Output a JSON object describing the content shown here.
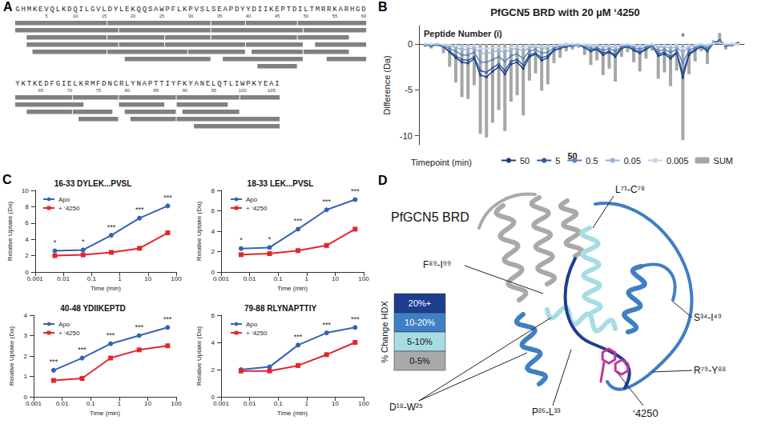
{
  "panel_letters": [
    "A",
    "B",
    "C",
    "D"
  ],
  "coverage": {
    "rows": [
      {
        "first_residue": 0,
        "sequence": "GHMKEVQLKDQILGVLDYLEKQQSAWPFLKPVSLSEAPDYYDIIKEPTDILTMRRKARHGD",
        "ticks": [
          5,
          10,
          15,
          20,
          25,
          30,
          35,
          40,
          45,
          50,
          55,
          60
        ],
        "peptides": [
          [
            0,
            15
          ],
          [
            0,
            17
          ],
          [
            2,
            15
          ],
          [
            2,
            17
          ],
          [
            3,
            15
          ],
          [
            16,
            33
          ],
          [
            18,
            33
          ],
          [
            16,
            25
          ],
          [
            18,
            25
          ],
          [
            16,
            29
          ],
          [
            19,
            33
          ],
          [
            26,
            33
          ],
          [
            26,
            39
          ],
          [
            30,
            39
          ],
          [
            34,
            39
          ],
          [
            34,
            49
          ],
          [
            34,
            48
          ],
          [
            36,
            49
          ],
          [
            40,
            48
          ],
          [
            40,
            49
          ],
          [
            41,
            49
          ],
          [
            42,
            48
          ],
          [
            49,
            60
          ],
          [
            50,
            60
          ],
          [
            49,
            57
          ],
          [
            52,
            60
          ],
          [
            50,
            57
          ],
          [
            54,
            60
          ]
        ]
      },
      {
        "first_residue": 61,
        "sequence": "YKTKEDFGIELKRMFDNCRLYNAPTTIYFKYANELQTLIWPKYEAI",
        "ticks": [
          65,
          70,
          75,
          80,
          85,
          90,
          95,
          100,
          105
        ],
        "peptides": [
          [
            61,
            70
          ],
          [
            61,
            72
          ],
          [
            63,
            70
          ],
          [
            71,
            78
          ],
          [
            71,
            77
          ],
          [
            72,
            78
          ],
          [
            79,
            88
          ],
          [
            79,
            86
          ],
          [
            80,
            88
          ],
          [
            81,
            88
          ],
          [
            89,
            99
          ],
          [
            89,
            97
          ],
          [
            90,
            99
          ],
          [
            89,
            106
          ],
          [
            100,
            106
          ],
          [
            92,
            106
          ]
        ]
      }
    ]
  },
  "chart_data": [
    {
      "type": "bar",
      "title": "PfGCN5 BRD with 20 µM ‘4250",
      "x_label": "Peptide Number (i)",
      "y_label": "Difference (Da)",
      "x": [
        2,
        4,
        6,
        8,
        10,
        12,
        14,
        16,
        18,
        20,
        22,
        24,
        26,
        28,
        30,
        32,
        34,
        36,
        38,
        40,
        42,
        44,
        46,
        48,
        50,
        52,
        54,
        56,
        58,
        60,
        62,
        64,
        66,
        68,
        70,
        72,
        74,
        76,
        78,
        80,
        82,
        84,
        86,
        88,
        90,
        92,
        94,
        96,
        98,
        100,
        102,
        104
      ],
      "series": [
        {
          "name": "50",
          "type": "line",
          "color": "#1f3f7a",
          "marker": "circle",
          "values": [
            -0.1,
            -0.2,
            -0.1,
            -0.3,
            -0.9,
            -1.5,
            -2.0,
            -2.1,
            -1.6,
            -3.4,
            -3.6,
            -3.0,
            -2.5,
            -3.3,
            -2.2,
            -2.0,
            -2.7,
            -1.4,
            -1.1,
            -1.8,
            -1.5,
            -0.7,
            -0.5,
            -0.3,
            -0.2,
            -0.1,
            -0.4,
            -0.8,
            -0.6,
            -1.2,
            -0.9,
            -1.4,
            -0.5,
            -0.3,
            -0.7,
            -1.0,
            -0.6,
            -0.2,
            -1.3,
            -1.1,
            -1.6,
            -1.0,
            -3.7,
            -1.2,
            -0.7,
            -0.3,
            -0.8,
            0.1,
            0.4,
            -0.2,
            -0.1,
            0.1
          ]
        },
        {
          "name": "5",
          "type": "line",
          "color": "#2e5c9e",
          "marker": "circle",
          "values": [
            -0.1,
            -0.1,
            -0.1,
            -0.3,
            -0.8,
            -1.3,
            -1.7,
            -1.8,
            -1.4,
            -2.9,
            -3.1,
            -2.6,
            -2.2,
            -2.9,
            -1.9,
            -1.7,
            -2.3,
            -1.2,
            -1.0,
            -1.5,
            -1.3,
            -0.6,
            -0.5,
            -0.2,
            -0.2,
            -0.1,
            -0.4,
            -0.7,
            -0.5,
            -1.0,
            -0.8,
            -1.2,
            -0.4,
            -0.3,
            -0.6,
            -0.9,
            -0.5,
            -0.2,
            -1.1,
            -0.9,
            -1.4,
            -0.9,
            -3.2,
            -1.0,
            -0.6,
            -0.2,
            -0.7,
            0.1,
            0.4,
            -0.2,
            -0.1,
            0.1
          ]
        },
        {
          "name": "0.5",
          "type": "line",
          "color": "#5b84c0",
          "marker": "circle",
          "values": [
            -0.1,
            -0.1,
            0.0,
            -0.2,
            -0.5,
            -0.8,
            -1.2,
            -1.2,
            -0.9,
            -2.0,
            -2.0,
            -1.7,
            -1.4,
            -1.9,
            -1.3,
            -1.1,
            -1.6,
            -0.8,
            -0.6,
            -1.0,
            -0.9,
            -0.4,
            -0.3,
            -0.2,
            -0.1,
            -0.1,
            -0.2,
            -0.5,
            -0.4,
            -0.7,
            -0.5,
            -0.8,
            -0.3,
            -0.2,
            -0.4,
            -0.6,
            -0.3,
            -0.2,
            -0.8,
            -0.6,
            -0.9,
            -0.6,
            -2.1,
            -0.7,
            -0.4,
            -0.2,
            -0.4,
            0.1,
            0.3,
            -0.1,
            -0.1,
            0.0
          ]
        },
        {
          "name": "0.05",
          "type": "line",
          "color": "#97b4dc",
          "marker": "circle",
          "values": [
            0.0,
            -0.1,
            0.0,
            -0.1,
            -0.2,
            -0.4,
            -0.6,
            -0.6,
            -0.4,
            -1.0,
            -1.0,
            -0.9,
            -0.7,
            -0.9,
            -0.6,
            -0.5,
            -0.8,
            -0.4,
            -0.3,
            -0.5,
            -0.4,
            -0.2,
            -0.1,
            0.0,
            -0.1,
            -0.1,
            -0.1,
            -0.2,
            -0.2,
            -0.3,
            -0.3,
            -0.4,
            -0.1,
            -0.1,
            -0.2,
            -0.3,
            -0.1,
            -0.1,
            -0.4,
            -0.3,
            -0.5,
            -0.3,
            -1.0,
            -0.3,
            -0.2,
            -0.1,
            -0.2,
            0.0,
            0.1,
            -0.1,
            0.0,
            0.0
          ]
        },
        {
          "name": "0.005",
          "type": "line",
          "color": "#c6d6ec",
          "marker": "circle",
          "values": [
            0.0,
            0.0,
            0.0,
            -0.1,
            -0.1,
            -0.2,
            -0.3,
            -0.3,
            -0.2,
            -0.5,
            -0.5,
            -0.4,
            -0.4,
            -0.5,
            -0.3,
            -0.3,
            -0.4,
            -0.2,
            -0.2,
            -0.3,
            -0.3,
            -0.2,
            -0.1,
            -0.1,
            0.0,
            0.0,
            -0.1,
            -0.1,
            -0.1,
            -0.2,
            -0.2,
            -0.3,
            -0.1,
            0.0,
            -0.1,
            -0.2,
            -0.1,
            0.0,
            -0.2,
            -0.2,
            -0.2,
            -0.1,
            -0.5,
            -0.2,
            -0.1,
            0.0,
            -0.1,
            0.1,
            0.1,
            0.0,
            0.0,
            0.0
          ]
        },
        {
          "name": "SUM",
          "type": "bar",
          "color": "#a6a6a6",
          "values": [
            -0.3,
            -0.5,
            -0.2,
            -1.0,
            -2.5,
            -4.2,
            -5.8,
            -6.0,
            -4.5,
            -9.8,
            -10.2,
            -8.6,
            -7.2,
            -9.5,
            -6.3,
            -5.6,
            -7.8,
            -4.0,
            -3.2,
            -5.1,
            -4.4,
            -2.1,
            -1.5,
            -0.8,
            -0.6,
            -0.4,
            -1.2,
            -2.3,
            -1.8,
            -3.4,
            -2.7,
            -4.1,
            -1.4,
            -0.9,
            -2.0,
            -3.0,
            -1.6,
            -0.7,
            -3.8,
            -3.1,
            -4.6,
            -2.9,
            -10.5,
            -3.3,
            -1.9,
            -0.8,
            -2.2,
            0.4,
            1.2,
            -0.6,
            -0.3,
            0.2
          ]
        }
      ],
      "xlim": [
        0,
        106
      ],
      "xticks": [
        50
      ],
      "ylim": [
        -11,
        2
      ],
      "yticks": [
        -10,
        -5,
        0
      ],
      "legend": "bottom",
      "legend_title": "Timepoint (min)",
      "annotations": [
        {
          "text": "*",
          "x": 86,
          "y": 0.8
        }
      ]
    },
    {
      "type": "line",
      "title": "16-33 DYLEK...PVSL",
      "x_label": "Time (min)",
      "y_label": "Relative Uptake (Da)",
      "log": "x",
      "x": [
        0.005,
        0.05,
        0.5,
        5,
        50
      ],
      "series": [
        {
          "name": "Apo",
          "color": "#3562b8",
          "marker": "circle",
          "values": [
            2.6,
            2.7,
            4.5,
            6.6,
            8.1
          ],
          "significance": [
            "*",
            "*",
            "***",
            "***",
            "***"
          ]
        },
        {
          "name": "+ ‘4250",
          "color": "#e3262b",
          "marker": "square",
          "values": [
            2.0,
            2.1,
            2.4,
            2.9,
            4.8
          ]
        }
      ],
      "xlim": [
        0.001,
        100
      ],
      "xticks": [
        0.001,
        0.01,
        0.1,
        1,
        10,
        100
      ],
      "ylim": [
        0,
        10
      ],
      "yticks": [
        0,
        2,
        4,
        6,
        8,
        10
      ],
      "legend": "top-left"
    },
    {
      "type": "line",
      "title": "18-33 LEK...PVSL",
      "x_label": "Time (min)",
      "y_label": "Relative Uptake (Da)",
      "log": "x",
      "x": [
        0.005,
        0.05,
        0.5,
        5,
        50
      ],
      "series": [
        {
          "name": "Apo",
          "color": "#3562b8",
          "marker": "circle",
          "values": [
            2.3,
            2.4,
            4.2,
            6.1,
            7.1
          ],
          "significance": [
            "*",
            "*",
            "***",
            "***",
            "***"
          ]
        },
        {
          "name": "+ ‘4250",
          "color": "#e3262b",
          "marker": "square",
          "values": [
            1.7,
            1.8,
            2.1,
            2.6,
            4.2
          ]
        }
      ],
      "xlim": [
        0.001,
        100
      ],
      "xticks": [
        0.001,
        0.01,
        0.1,
        1,
        10,
        100
      ],
      "ylim": [
        0,
        8
      ],
      "yticks": [
        0,
        2,
        4,
        6,
        8
      ],
      "legend": "top-left"
    },
    {
      "type": "line",
      "title": "40-48 YDIIKEPTD",
      "x_label": "Time (min)",
      "y_label": "Relative Uptake (Da)",
      "log": "x",
      "x": [
        0.005,
        0.05,
        0.5,
        5,
        50
      ],
      "series": [
        {
          "name": "Apo",
          "color": "#3562b8",
          "marker": "circle",
          "values": [
            1.3,
            1.9,
            2.6,
            3.0,
            3.4
          ],
          "significance": [
            "***",
            "***",
            "***",
            "***",
            "***"
          ]
        },
        {
          "name": "+ ‘4250",
          "color": "#e3262b",
          "marker": "square",
          "values": [
            0.8,
            0.9,
            1.9,
            2.3,
            2.5
          ]
        }
      ],
      "xlim": [
        0.001,
        100
      ],
      "xticks": [
        0.001,
        0.01,
        0.1,
        1,
        10,
        100
      ],
      "ylim": [
        0,
        4
      ],
      "yticks": [
        0,
        1,
        2,
        3,
        4
      ],
      "legend": "top-left"
    },
    {
      "type": "line",
      "title": "79-88 RLYNAPTTIY",
      "x_label": "Time (min)",
      "y_label": "Relative Uptake (Da)",
      "log": "x",
      "x": [
        0.005,
        0.05,
        0.5,
        5,
        50
      ],
      "series": [
        {
          "name": "Apo",
          "color": "#3562b8",
          "marker": "circle",
          "values": [
            2.0,
            2.2,
            3.8,
            4.7,
            5.1
          ],
          "significance": [
            null,
            null,
            "***",
            "***",
            "***"
          ]
        },
        {
          "name": "+ ‘4250",
          "color": "#e3262b",
          "marker": "square",
          "values": [
            1.9,
            1.9,
            2.3,
            3.1,
            4.0
          ]
        }
      ],
      "xlim": [
        0.001,
        100
      ],
      "xticks": [
        0.001,
        0.01,
        0.1,
        1,
        10,
        100
      ],
      "ylim": [
        0,
        6
      ],
      "yticks": [
        0,
        2,
        4,
        6
      ],
      "legend": "top-left"
    }
  ],
  "structure": {
    "title": "PfGCN5 BRD",
    "legend": {
      "title": "% Change HDX",
      "items": [
        {
          "label": "20%+",
          "color": "#1d3d8f"
        },
        {
          "label": "10-20%",
          "color": "#3f7fc4"
        },
        {
          "label": "5-10%",
          "color": "#a6dde3"
        },
        {
          "label": "0-5%",
          "color": "#a9a9a9"
        }
      ]
    },
    "regions": [
      "L⁷¹-C⁷⁸",
      "F⁸⁹-I⁹⁹",
      "S³⁴-I⁴⁹",
      "R⁷⁹-Y⁸⁸",
      "D¹⁸-W²⁵",
      "P²⁶-L³³"
    ],
    "ligand": "‘4250",
    "ligand_color": "#c2389a"
  }
}
